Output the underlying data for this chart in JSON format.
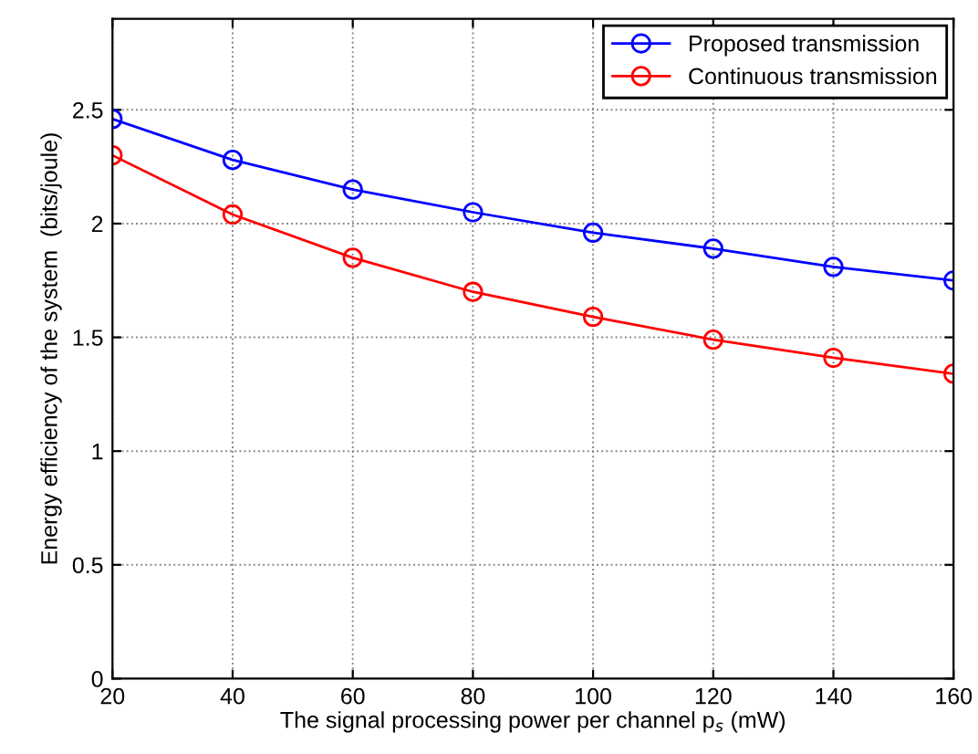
{
  "chart_data": {
    "type": "line",
    "xlabel": "The signal processing power per channel p$_{s}$ (mW)",
    "ylabel": "Energy efficiency of the system  (bits/joule)",
    "x": [
      20,
      40,
      60,
      80,
      100,
      120,
      140,
      160
    ],
    "series": [
      {
        "name": "Proposed transmission",
        "color": "#0000ff",
        "values": [
          2.46,
          2.28,
          2.15,
          2.05,
          1.96,
          1.89,
          1.81,
          1.75
        ]
      },
      {
        "name": "Continuous transmission",
        "color": "#ff0000",
        "values": [
          2.3,
          2.04,
          1.85,
          1.7,
          1.59,
          1.49,
          1.41,
          1.34
        ]
      }
    ],
    "xlim": [
      20,
      160
    ],
    "xticks": [
      20,
      40,
      60,
      80,
      100,
      120,
      140,
      160
    ],
    "ylim": [
      0,
      2.9
    ],
    "yticks": [
      0,
      0.5,
      1,
      1.5,
      2,
      2.5
    ],
    "grid": true,
    "legend": "top right",
    "marker": "circle",
    "line_style": "solid"
  }
}
